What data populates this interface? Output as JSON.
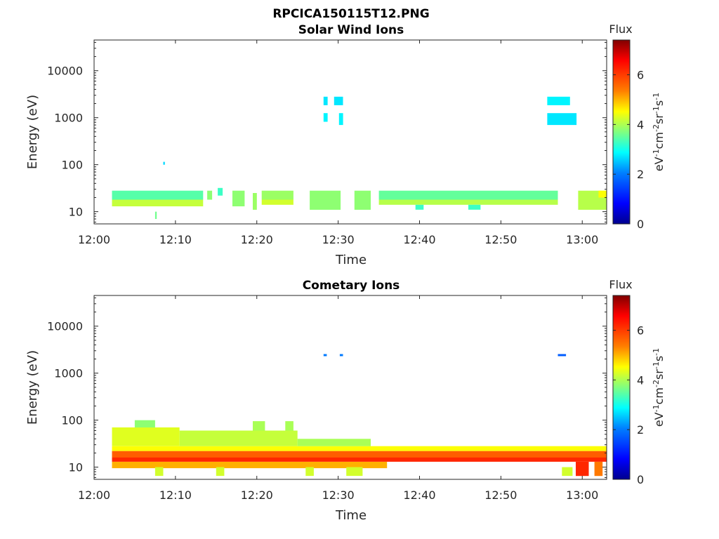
{
  "figure": {
    "title": "RPCICA150115T12.PNG"
  },
  "colormap": {
    "stops": [
      "#00008f",
      "#0000ff",
      "#0080ff",
      "#00ffff",
      "#80ff80",
      "#ffff00",
      "#ff8000",
      "#ff0000",
      "#800000"
    ],
    "range": [
      0,
      7.4
    ],
    "ticks": [
      "0",
      "2",
      "4",
      "6"
    ]
  },
  "chart_data": [
    {
      "type": "heatmap",
      "title": "Solar Wind Ions",
      "xlabel": "Time",
      "ylabel": "Energy (eV)",
      "xticks": [
        "12:00",
        "12:10",
        "12:20",
        "12:30",
        "12:40",
        "12:50",
        "13:00"
      ],
      "yticks": [
        "10",
        "100",
        "1000",
        "10000"
      ],
      "yscale": "log",
      "ylim": [
        5.5,
        45000
      ],
      "xlim_minutes": [
        0,
        63
      ],
      "colorbar_title": "Flux",
      "colorbar_label": "eV-1cm-2sr-1s-1",
      "cells": [
        {
          "t": [
            2.2,
            13.4
          ],
          "e": [
            18,
            28
          ],
          "v": 3.4
        },
        {
          "t": [
            2.2,
            13.4
          ],
          "e": [
            13,
            18
          ],
          "v": 4.2
        },
        {
          "t": 14.2,
          "e": [
            18,
            28
          ],
          "v": 3.8
        },
        {
          "t": 15.5,
          "e": [
            22,
            32
          ],
          "v": 3.2
        },
        {
          "t": [
            17,
            18.5
          ],
          "e": [
            13,
            28
          ],
          "v": 3.8
        },
        {
          "t": [
            19.5,
            20
          ],
          "e": [
            11,
            25
          ],
          "v": 3.9
        },
        {
          "t": [
            20.6,
            24.5
          ],
          "e": [
            18,
            28
          ],
          "v": 3.9
        },
        {
          "t": [
            20.6,
            24.5
          ],
          "e": [
            14,
            18
          ],
          "v": 4.3
        },
        {
          "t": [
            26.5,
            30.3
          ],
          "e": [
            11,
            28
          ],
          "v": 3.8
        },
        {
          "t": [
            32,
            34
          ],
          "e": [
            11,
            28
          ],
          "v": 3.8
        },
        {
          "t": [
            35,
            57
          ],
          "e": [
            18,
            28
          ],
          "v": 3.5
        },
        {
          "t": [
            35,
            57
          ],
          "e": [
            14,
            18
          ],
          "v": 4.1
        },
        {
          "t": [
            39.5,
            40.5
          ],
          "e": [
            11,
            14
          ],
          "v": 3.2
        },
        {
          "t": [
            46,
            47.5
          ],
          "e": [
            11,
            14
          ],
          "v": 3.2
        },
        {
          "t": [
            59.5,
            63
          ],
          "e": [
            11,
            28
          ],
          "v": 4.1
        },
        {
          "t": [
            62,
            63
          ],
          "e": [
            20,
            28
          ],
          "v": 4.6
        },
        {
          "t": [
            7.5,
            7.7
          ],
          "e": [
            7,
            10
          ],
          "v": 3.6
        },
        {
          "t": [
            8.5,
            8.7
          ],
          "e": [
            100,
            115
          ],
          "v": 2.5
        },
        {
          "t": [
            28.2,
            28.7
          ],
          "e": [
            1850,
            2800
          ],
          "v": 2.6
        },
        {
          "t": [
            28.2,
            28.7
          ],
          "e": [
            820,
            1250
          ],
          "v": 2.7
        },
        {
          "t": [
            29.5,
            30.6
          ],
          "e": [
            1850,
            2800
          ],
          "v": 2.6
        },
        {
          "t": [
            30.1,
            30.6
          ],
          "e": [
            700,
            1250
          ],
          "v": 2.7
        },
        {
          "t": [
            55.7,
            58.5
          ],
          "e": [
            1850,
            2800
          ],
          "v": 2.7
        },
        {
          "t": [
            55.7,
            59.3
          ],
          "e": [
            700,
            1250
          ],
          "v": 2.6
        }
      ]
    },
    {
      "type": "heatmap",
      "title": "Cometary Ions",
      "xlabel": "Time",
      "ylabel": "Energy (eV)",
      "xticks": [
        "12:00",
        "12:10",
        "12:20",
        "12:30",
        "12:40",
        "12:50",
        "13:00"
      ],
      "yticks": [
        "10",
        "100",
        "1000",
        "10000"
      ],
      "yscale": "log",
      "ylim": [
        5.5,
        45000
      ],
      "xlim_minutes": [
        0,
        63
      ],
      "colorbar_title": "Flux",
      "colorbar_label": "eV-1cm-2sr-1s-1",
      "cells": [
        {
          "t": [
            2.2,
            63
          ],
          "e": [
            22,
            28
          ],
          "v": 4.6
        },
        {
          "t": [
            2.2,
            63
          ],
          "e": [
            16,
            22
          ],
          "v": 5.8
        },
        {
          "t": [
            2.2,
            63
          ],
          "e": [
            13,
            16
          ],
          "v": 6.2
        },
        {
          "t": [
            2.2,
            36
          ],
          "e": [
            9.5,
            13
          ],
          "v": 5.2
        },
        {
          "t": [
            2.2,
            10.5
          ],
          "e": [
            28,
            70
          ],
          "v": 4.4
        },
        {
          "t": [
            10.5,
            25
          ],
          "e": [
            28,
            60
          ],
          "v": 4.2
        },
        {
          "t": [
            25,
            34
          ],
          "e": [
            28,
            40
          ],
          "v": 4.0
        },
        {
          "t": [
            5,
            7.5
          ],
          "e": [
            70,
            100
          ],
          "v": 3.8
        },
        {
          "t": [
            19.5,
            21
          ],
          "e": [
            60,
            95
          ],
          "v": 4.0
        },
        {
          "t": [
            23.5,
            24.5
          ],
          "e": [
            60,
            95
          ],
          "v": 4.0
        },
        {
          "t": [
            7.5,
            8.5
          ],
          "e": [
            6.5,
            10
          ],
          "v": 4.3
        },
        {
          "t": [
            15,
            16
          ],
          "e": [
            6.5,
            10
          ],
          "v": 4.3
        },
        {
          "t": [
            26,
            27
          ],
          "e": [
            6.5,
            10
          ],
          "v": 4.3
        },
        {
          "t": [
            31,
            33
          ],
          "e": [
            6.5,
            10
          ],
          "v": 4.3
        },
        {
          "t": [
            57.5,
            58.8
          ],
          "e": [
            6.5,
            10
          ],
          "v": 4.3
        },
        {
          "t": [
            59.2,
            60.8
          ],
          "e": [
            6.5,
            13
          ],
          "v": 6.2
        },
        {
          "t": [
            61.5,
            62.5
          ],
          "e": [
            6.5,
            13
          ],
          "v": 5.6
        },
        {
          "t": [
            28.2,
            28.6
          ],
          "e": [
            2300,
            2550
          ],
          "v": 1.8
        },
        {
          "t": [
            30.2,
            30.6
          ],
          "e": [
            2300,
            2550
          ],
          "v": 1.8
        },
        {
          "t": [
            57,
            58
          ],
          "e": [
            2300,
            2550
          ],
          "v": 1.6
        }
      ]
    }
  ]
}
